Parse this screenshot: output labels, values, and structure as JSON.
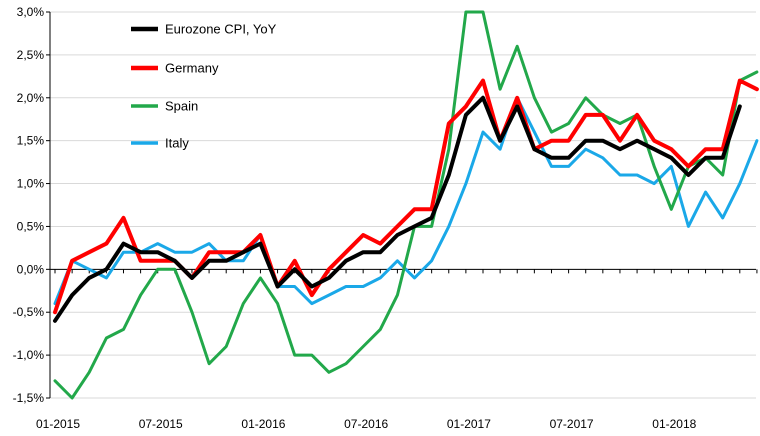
{
  "chart_data": {
    "type": "line",
    "title": "",
    "xlabel": "",
    "ylabel": "",
    "ylim": [
      -1.5,
      3.0
    ],
    "yticks": [
      -1.5,
      -1.0,
      -0.5,
      0.0,
      0.5,
      1.0,
      1.5,
      2.0,
      2.5,
      3.0
    ],
    "ytick_labels": [
      "-1,5%",
      "-1,0%",
      "-0,5%",
      "0,0%",
      "0,5%",
      "1,0%",
      "1,5%",
      "2,0%",
      "2,5%",
      "3,0%"
    ],
    "x_labels": [
      "01-2015",
      "07-2015",
      "01-2016",
      "07-2016",
      "01-2017",
      "07-2017",
      "01-2018"
    ],
    "x_label_index": [
      0,
      6,
      12,
      18,
      24,
      30,
      36
    ],
    "x_count": 42,
    "grid": "horizontal",
    "legend_position": "top-left",
    "series": [
      {
        "name": "Eurozone CPI, YoY",
        "color": "#000000",
        "width": 4,
        "values": [
          -0.6,
          -0.3,
          -0.1,
          0.0,
          0.3,
          0.2,
          0.2,
          0.1,
          -0.1,
          0.1,
          0.1,
          0.2,
          0.3,
          -0.2,
          0.0,
          -0.2,
          -0.1,
          0.1,
          0.2,
          0.2,
          0.4,
          0.5,
          0.6,
          1.1,
          1.8,
          2.0,
          1.5,
          1.9,
          1.4,
          1.3,
          1.3,
          1.5,
          1.5,
          1.4,
          1.5,
          1.4,
          1.3,
          1.1,
          1.3,
          1.3,
          1.9
        ]
      },
      {
        "name": "Germany",
        "color": "#ff0000",
        "width": 4,
        "values": [
          -0.5,
          0.1,
          0.2,
          0.3,
          0.6,
          0.1,
          0.1,
          0.1,
          -0.1,
          0.2,
          0.2,
          0.2,
          0.4,
          -0.2,
          0.1,
          -0.3,
          0.0,
          0.2,
          0.4,
          0.3,
          0.5,
          0.7,
          0.7,
          1.7,
          1.9,
          2.2,
          1.5,
          2.0,
          1.4,
          1.5,
          1.5,
          1.8,
          1.8,
          1.5,
          1.8,
          1.5,
          1.4,
          1.2,
          1.4,
          1.4,
          2.2,
          2.1
        ]
      },
      {
        "name": "Spain",
        "color": "#22a84a",
        "width": 3,
        "values": [
          -1.3,
          -1.5,
          -1.2,
          -0.8,
          -0.7,
          -0.3,
          0.0,
          0.0,
          -0.5,
          -1.1,
          -0.9,
          -0.4,
          -0.1,
          -0.4,
          -1.0,
          -1.0,
          -1.2,
          -1.1,
          -0.9,
          -0.7,
          -0.3,
          0.5,
          0.5,
          1.4,
          3.0,
          3.0,
          2.1,
          2.6,
          2.0,
          1.6,
          1.7,
          2.0,
          1.8,
          1.7,
          1.8,
          1.2,
          0.7,
          1.2,
          1.3,
          1.1,
          2.2,
          2.3
        ]
      },
      {
        "name": "Italy",
        "color": "#1aa8e8",
        "width": 3,
        "values": [
          -0.4,
          0.1,
          0.0,
          -0.1,
          0.2,
          0.2,
          0.3,
          0.2,
          0.2,
          0.3,
          0.1,
          0.1,
          0.4,
          -0.2,
          -0.2,
          -0.4,
          -0.3,
          -0.2,
          -0.2,
          -0.1,
          0.1,
          -0.1,
          0.1,
          0.5,
          1.0,
          1.6,
          1.4,
          2.0,
          1.6,
          1.2,
          1.2,
          1.4,
          1.3,
          1.1,
          1.1,
          1.0,
          1.2,
          0.5,
          0.9,
          0.6,
          1.0,
          1.5
        ]
      }
    ]
  }
}
